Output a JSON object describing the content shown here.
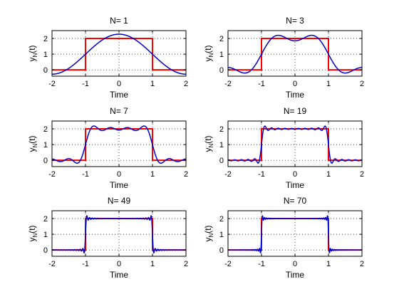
{
  "figure": {
    "background": "#ffffff",
    "target_color": "#ff0000",
    "approx_color": "#0000cc"
  },
  "chart_data": [
    {
      "type": "line",
      "title": "N= 1",
      "N": 1,
      "xlabel": "Time",
      "ylabel": "y_N(t)",
      "xlim": [
        -2,
        2
      ],
      "ylim": [
        -0.4,
        2.5
      ],
      "xticks": [
        -2,
        -1,
        0,
        1,
        2
      ],
      "yticks": [
        0,
        1,
        2
      ],
      "grid": true,
      "series": [
        {
          "kind": "square",
          "color": "#ff0000",
          "x": [
            -2,
            -1,
            -1,
            1,
            1,
            2
          ],
          "y": [
            0,
            0,
            2,
            2,
            0,
            0
          ]
        },
        {
          "kind": "fourier",
          "color": "#0000cc",
          "period": 4,
          "amplitude": 2,
          "terms": 1
        }
      ]
    },
    {
      "type": "line",
      "title": "N= 3",
      "N": 3,
      "xlabel": "Time",
      "ylabel": "y_N(t)",
      "xlim": [
        -2,
        2
      ],
      "ylim": [
        -0.4,
        2.5
      ],
      "xticks": [
        -2,
        -1,
        0,
        1,
        2
      ],
      "yticks": [
        0,
        1,
        2
      ],
      "grid": true,
      "series": [
        {
          "kind": "square",
          "color": "#ff0000",
          "x": [
            -2,
            -1,
            -1,
            1,
            1,
            2
          ],
          "y": [
            0,
            0,
            2,
            2,
            0,
            0
          ]
        },
        {
          "kind": "fourier",
          "color": "#0000cc",
          "period": 4,
          "amplitude": 2,
          "terms": 3
        }
      ]
    },
    {
      "type": "line",
      "title": "N= 7",
      "N": 7,
      "xlabel": "Time",
      "ylabel": "y_N(t)",
      "xlim": [
        -2,
        2
      ],
      "ylim": [
        -0.4,
        2.5
      ],
      "xticks": [
        -2,
        -1,
        0,
        1,
        2
      ],
      "yticks": [
        0,
        1,
        2
      ],
      "grid": true,
      "series": [
        {
          "kind": "square",
          "color": "#ff0000",
          "x": [
            -2,
            -1,
            -1,
            1,
            1,
            2
          ],
          "y": [
            0,
            0,
            2,
            2,
            0,
            0
          ]
        },
        {
          "kind": "fourier",
          "color": "#0000cc",
          "period": 4,
          "amplitude": 2,
          "terms": 7
        }
      ]
    },
    {
      "type": "line",
      "title": "N= 19",
      "N": 19,
      "xlabel": "Time",
      "ylabel": "y_N(t)",
      "xlim": [
        -2,
        2
      ],
      "ylim": [
        -0.4,
        2.5
      ],
      "xticks": [
        -2,
        -1,
        0,
        1,
        2
      ],
      "yticks": [
        0,
        1,
        2
      ],
      "grid": true,
      "series": [
        {
          "kind": "square",
          "color": "#ff0000",
          "x": [
            -2,
            -1,
            -1,
            1,
            1,
            2
          ],
          "y": [
            0,
            0,
            2,
            2,
            0,
            0
          ]
        },
        {
          "kind": "fourier",
          "color": "#0000cc",
          "period": 4,
          "amplitude": 2,
          "terms": 19
        }
      ]
    },
    {
      "type": "line",
      "title": "N= 49",
      "N": 49,
      "xlabel": "Time",
      "ylabel": "y_N(t)",
      "xlim": [
        -2,
        2
      ],
      "ylim": [
        -0.4,
        2.5
      ],
      "xticks": [
        -2,
        -1,
        0,
        1,
        2
      ],
      "yticks": [
        0,
        1,
        2
      ],
      "grid": true,
      "series": [
        {
          "kind": "square",
          "color": "#ff0000",
          "x": [
            -2,
            -1,
            -1,
            1,
            1,
            2
          ],
          "y": [
            0,
            0,
            2,
            2,
            0,
            0
          ]
        },
        {
          "kind": "fourier",
          "color": "#0000cc",
          "period": 4,
          "amplitude": 2,
          "terms": 49
        }
      ]
    },
    {
      "type": "line",
      "title": "N= 70",
      "N": 70,
      "xlabel": "Time",
      "ylabel": "y_N(t)",
      "xlim": [
        -2,
        2
      ],
      "ylim": [
        -0.4,
        2.5
      ],
      "xticks": [
        -2,
        -1,
        0,
        1,
        2
      ],
      "yticks": [
        0,
        1,
        2
      ],
      "grid": true,
      "series": [
        {
          "kind": "square",
          "color": "#ff0000",
          "x": [
            -2,
            -1,
            -1,
            1,
            1,
            2
          ],
          "y": [
            0,
            0,
            2,
            2,
            0,
            0
          ]
        },
        {
          "kind": "fourier",
          "color": "#0000cc",
          "period": 4,
          "amplitude": 2,
          "terms": 70
        }
      ]
    }
  ]
}
